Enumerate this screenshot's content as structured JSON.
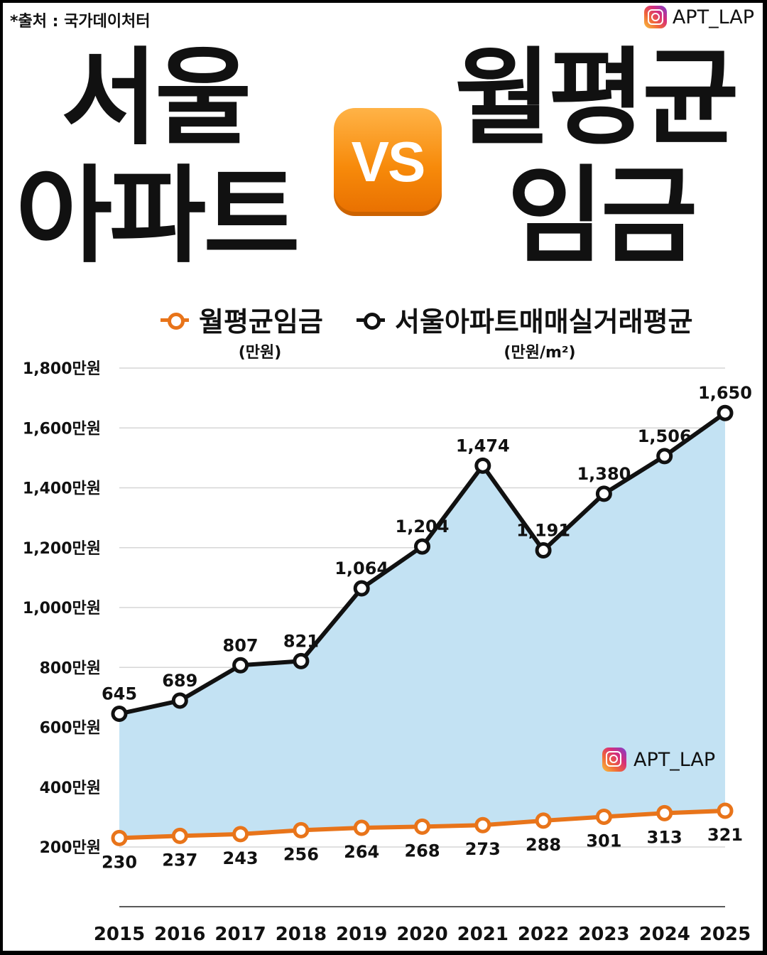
{
  "source": "*출처 : 국가데이처터",
  "brand": "APT_LAP",
  "headline": {
    "left_line1": "서울",
    "left_line2": "아파트",
    "vs": "VS",
    "right_line1": "월평균",
    "right_line2": "임금"
  },
  "legend": {
    "wage_name": "월평균임금",
    "wage_unit": "(만원)",
    "apt_name": "서울아파트매매실거래평균",
    "apt_unit": "(만원/m²)"
  },
  "watermark": "APT_LAP",
  "colors": {
    "wage": "#e8741a",
    "apt": "#111111",
    "area_fill": "#c3e2f3",
    "grid": "#d6d6d6"
  },
  "chart_data": {
    "type": "line",
    "x": [
      "2015",
      "2016",
      "2017",
      "2018",
      "2019",
      "2020",
      "2021",
      "2022",
      "2023",
      "2024",
      "2025"
    ],
    "series": [
      {
        "name": "서울아파트매매실거래평균",
        "values": [
          645,
          689,
          807,
          821,
          1064,
          1204,
          1474,
          1191,
          1380,
          1506,
          1650
        ],
        "labels": [
          "645",
          "689",
          "807",
          "821",
          "1,064",
          "1,204",
          "1,474",
          "1,191",
          "1,380",
          "1,506",
          "1,650"
        ],
        "area_fill": true
      },
      {
        "name": "월평균임금",
        "values": [
          230,
          237,
          243,
          256,
          264,
          268,
          273,
          288,
          301,
          313,
          321
        ],
        "labels": [
          "230",
          "237",
          "243",
          "256",
          "264",
          "268",
          "273",
          "288",
          "301",
          "313",
          "321"
        ],
        "area_fill": false
      }
    ],
    "yticks": [
      200,
      400,
      600,
      800,
      1000,
      1200,
      1400,
      1600,
      1800
    ],
    "ytick_labels": [
      "200만원",
      "400만원",
      "600만원",
      "800만원",
      "1,000만원",
      "1,200만원",
      "1,400만원",
      "1,600만원",
      "1,800만원"
    ],
    "ylim": [
      200,
      1800
    ],
    "grid": true,
    "legend_position": "top"
  }
}
